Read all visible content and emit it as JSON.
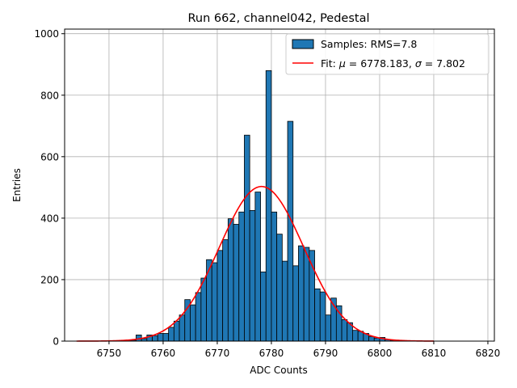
{
  "chart_data": {
    "type": "bar",
    "title": "Run 662, channel042, Pedestal",
    "xlabel": "ADC Counts",
    "ylabel": "Entries",
    "xlim": [
      6741.8,
      6821.2
    ],
    "ylim": [
      0,
      1015
    ],
    "xticks": [
      6750,
      6760,
      6770,
      6780,
      6790,
      6800,
      6810,
      6820
    ],
    "yticks": [
      0,
      200,
      400,
      600,
      800,
      1000
    ],
    "grid": true,
    "legend_position": "top-right",
    "bin_width": 1,
    "bar_color": "#1f77b4",
    "fit_color": "#ff0000",
    "series": [
      {
        "name": "Samples: RMS=7.8",
        "kind": "histogram",
        "bins": [
          6750,
          6751,
          6752,
          6753,
          6754,
          6755,
          6756,
          6757,
          6758,
          6759,
          6760,
          6761,
          6762,
          6763,
          6764,
          6765,
          6766,
          6767,
          6768,
          6769,
          6770,
          6771,
          6772,
          6773,
          6774,
          6775,
          6776,
          6777,
          6778,
          6779,
          6780,
          6781,
          6782,
          6783,
          6784,
          6785,
          6786,
          6787,
          6788,
          6789,
          6790,
          6791,
          6792,
          6793,
          6794,
          6795,
          6796,
          6797,
          6798,
          6799,
          6800,
          6801,
          6802,
          6803,
          6804
        ],
        "values": [
          0,
          0,
          0,
          1,
          3,
          20,
          8,
          20,
          18,
          25,
          25,
          45,
          65,
          85,
          135,
          118,
          158,
          205,
          265,
          255,
          295,
          330,
          398,
          380,
          420,
          670,
          425,
          485,
          225,
          880,
          420,
          348,
          260,
          715,
          245,
          310,
          305,
          295,
          170,
          160,
          85,
          140,
          115,
          70,
          60,
          35,
          32,
          25,
          15,
          10,
          12,
          5,
          3,
          1,
          1
        ]
      },
      {
        "name": "Fit: μ = 6778.183, σ = 7.802",
        "kind": "gaussian",
        "amplitude": 503,
        "mu": 6778.183,
        "sigma": 7.802,
        "x_range": [
          6744,
          6810
        ]
      }
    ],
    "legend": [
      {
        "label_prefix": "Samples: RMS=7.8",
        "label_suffix": ""
      },
      {
        "label_prefix": "Fit: ",
        "mu_symbol": "μ",
        "mid": " = 6778.183, ",
        "sigma_symbol": "σ",
        "label_suffix": " = 7.802"
      }
    ]
  }
}
